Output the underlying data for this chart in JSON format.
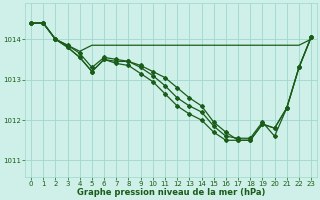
{
  "title": "Graphe pression niveau de la mer (hPa)",
  "bg_color": "#cef0e8",
  "grid_color": "#9ed8cc",
  "line_color": "#1a5c1a",
  "x_ticks": [
    0,
    1,
    2,
    3,
    4,
    5,
    6,
    7,
    8,
    9,
    10,
    11,
    12,
    13,
    14,
    15,
    16,
    17,
    18,
    19,
    20,
    21,
    22,
    23
  ],
  "y_ticks": [
    1011,
    1012,
    1013,
    1014
  ],
  "ylim": [
    1010.6,
    1014.9
  ],
  "xlim": [
    -0.5,
    23.5
  ],
  "series": [
    [
      1014.4,
      1014.4,
      1014.0,
      1013.85,
      1013.7,
      1013.85,
      1013.85,
      1013.85,
      1013.85,
      1013.85,
      1013.85,
      1013.85,
      1013.85,
      1013.85,
      1013.85,
      1013.85,
      1013.85,
      1013.85,
      1013.85,
      1013.85,
      1013.85,
      1013.85,
      1013.85,
      1014.0
    ],
    [
      1014.4,
      1014.4,
      1014.0,
      1013.8,
      1013.55,
      1013.2,
      1013.5,
      1013.45,
      1013.45,
      1013.3,
      1013.1,
      1012.85,
      1012.55,
      1012.35,
      1012.2,
      1011.85,
      1011.6,
      1011.55,
      1011.55,
      1011.95,
      1011.6,
      1012.3,
      1013.3,
      1014.05
    ],
    [
      1014.4,
      1014.4,
      1014.0,
      1013.8,
      1013.55,
      1013.2,
      1013.5,
      1013.4,
      1013.35,
      1013.15,
      1012.95,
      1012.65,
      1012.35,
      1012.15,
      1012.0,
      1011.7,
      1011.5,
      1011.5,
      1011.5,
      1011.9,
      1011.8,
      1012.3,
      1013.3,
      1014.05
    ],
    [
      1014.4,
      1014.4,
      1014.0,
      1013.85,
      1013.65,
      1013.3,
      1013.55,
      1013.5,
      1013.45,
      1013.35,
      1013.2,
      1013.05,
      1012.8,
      1012.55,
      1012.35,
      1011.95,
      1011.7,
      1011.5,
      1011.5,
      1011.9,
      1011.8,
      1012.3,
      1013.3,
      1014.05
    ]
  ],
  "marker": "D",
  "markersize": 2.0,
  "linewidth": 0.9,
  "tick_fontsize": 5.0,
  "xlabel_fontsize": 6.0
}
